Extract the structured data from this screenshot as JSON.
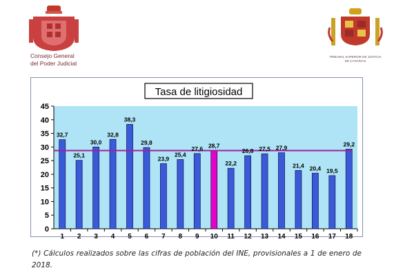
{
  "header": {
    "left_logo": {
      "icon": "spanish-coat-of-arms-icon",
      "line1": "Consejo General",
      "line2": "del Poder Judicial"
    },
    "right_logo": {
      "icon": "spanish-coat-of-arms-icon",
      "line1": "TRIBUNAL SUPERIOR DE JUSTICIA",
      "line2": "DE CANARIAS"
    }
  },
  "chart_data": {
    "type": "bar",
    "title": "Tasa de litigiosidad",
    "categories": [
      "1",
      "2",
      "3",
      "4",
      "5",
      "6",
      "7",
      "8",
      "9",
      "10",
      "11",
      "12",
      "13",
      "14",
      "15",
      "16",
      "17",
      "18"
    ],
    "values": [
      32.7,
      25.1,
      30.0,
      32.8,
      38.3,
      29.8,
      23.9,
      25.4,
      27.6,
      28.7,
      22.2,
      26.8,
      27.5,
      27.9,
      21.4,
      20.4,
      19.5,
      29.2
    ],
    "value_labels": [
      "32,7",
      "25,1",
      "30,0",
      "32,8",
      "38,3",
      "29,8",
      "23,9",
      "25,4",
      "27,6",
      "28,7",
      "22,2",
      "26,8",
      "27,5",
      "27,9",
      "21,4",
      "20,4",
      "19,5",
      "29,2"
    ],
    "highlight_category": "10",
    "reference_line": 28.7,
    "ylim": [
      0,
      45
    ],
    "yticks": [
      0,
      5,
      10,
      15,
      20,
      25,
      30,
      35,
      40,
      45
    ],
    "grid": false,
    "colors": {
      "bar": "#3a5bd9",
      "bar_highlight": "#e600c8",
      "reference_line": "#a0209c",
      "plot_background": "#aee4f5",
      "bar_outline": "#1a1a60"
    }
  },
  "footnote": "(*) Cálculos realizados sobre las cifras de población del INE, provisionales a 1 de enero de 2018."
}
